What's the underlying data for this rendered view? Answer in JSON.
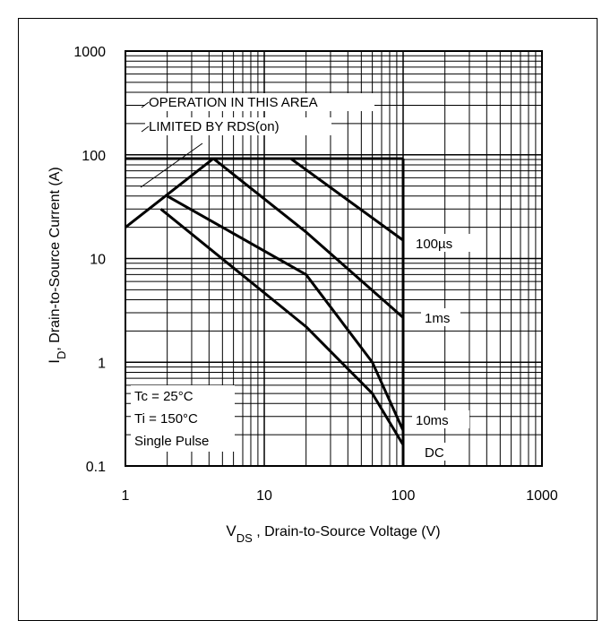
{
  "chart_data": {
    "type": "line",
    "xscale": "log",
    "yscale": "log",
    "xlim": [
      1,
      1000
    ],
    "ylim": [
      0.1,
      1000
    ],
    "xticks": [
      "1",
      "10",
      "100",
      "1000"
    ],
    "yticks": [
      "1000",
      "100",
      "10",
      "1",
      "0.1"
    ],
    "xlabel": {
      "main": "V",
      "sub": "DS",
      "rest": " , Drain-to-Source Voltage (V)"
    },
    "ylabel": {
      "main": "I",
      "sub": "D",
      "rest": ",  Drain-to-Source Current (A)"
    },
    "grid": true,
    "series": [
      {
        "name": "100µs",
        "points": [
          [
            15.5,
            92
          ],
          [
            100,
            15
          ]
        ]
      },
      {
        "name": "1ms",
        "points": [
          [
            4.3,
            92
          ],
          [
            20,
            18
          ],
          [
            100,
            2.7
          ]
        ]
      },
      {
        "name": "10ms",
        "points": [
          [
            2,
            40
          ],
          [
            20,
            7
          ],
          [
            60,
            1
          ],
          [
            100,
            0.22
          ]
        ]
      },
      {
        "name": "DC",
        "points": [
          [
            1.8,
            30
          ],
          [
            20,
            2.2
          ],
          [
            60,
            0.5
          ],
          [
            100,
            0.16
          ]
        ]
      }
    ],
    "rds_limit_line": [
      [
        1,
        20
      ],
      [
        4.3,
        92
      ]
    ],
    "current_limit": {
      "value": 92,
      "xrange": [
        1,
        100
      ]
    },
    "voltage_limit": {
      "value": 100,
      "yrange": [
        0.1,
        92
      ]
    },
    "annotations": {
      "rds_line1": "OPERATION IN THIS AREA",
      "rds_line2": "LIMITED BY RDS(on)",
      "conditions": [
        "Tc = 25°C",
        "Ti = 150°C",
        "Single Pulse"
      ],
      "curve_labels": [
        "100µs",
        "1ms",
        "10ms",
        "DC"
      ]
    }
  }
}
